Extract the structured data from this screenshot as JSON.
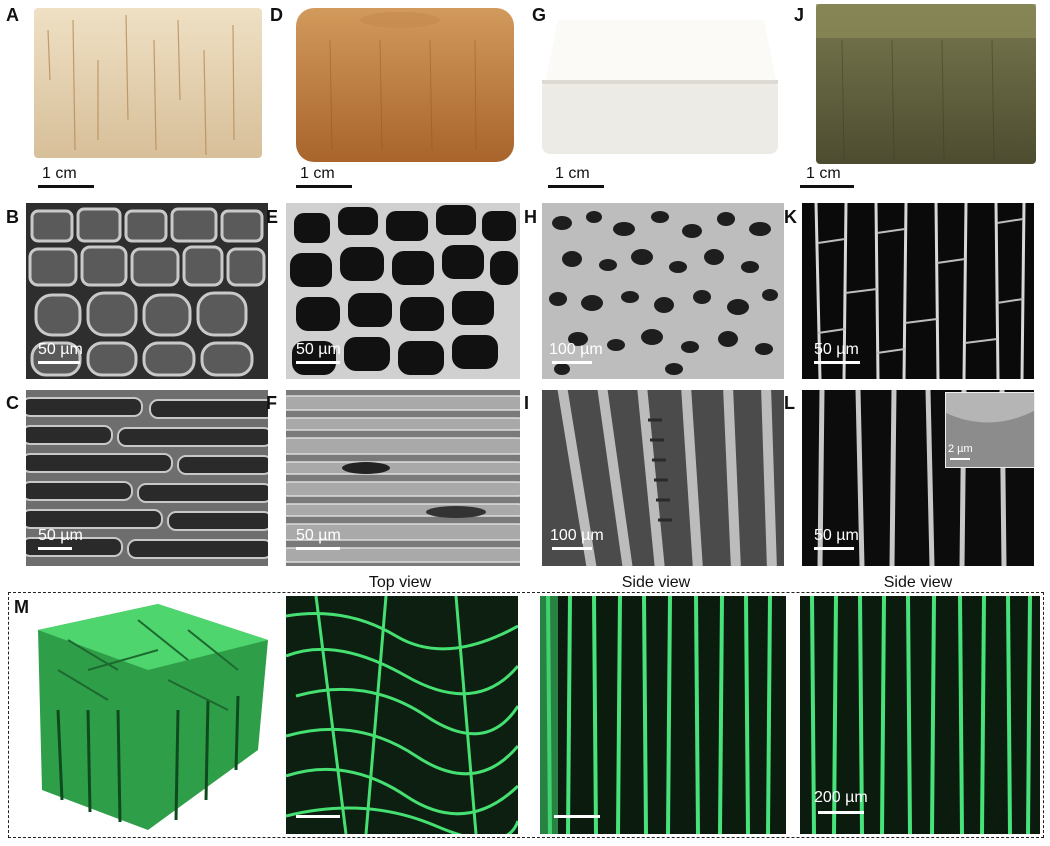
{
  "figure": {
    "panels": {
      "A": "A",
      "B": "B",
      "C": "C",
      "D": "D",
      "E": "E",
      "F": "F",
      "G": "G",
      "H": "H",
      "I": "I",
      "J": "J",
      "K": "K",
      "L": "L",
      "M": "M"
    },
    "scale": {
      "cm": "1 cm",
      "um50": "50 µm",
      "um100": "100 µm",
      "um2": "2 µm",
      "um200": "200 µm"
    },
    "views": {
      "top": "Top view",
      "side1": "Side view",
      "side2": "Side view"
    },
    "colors": {
      "balsa": "#e3cfb0",
      "delignified": "#b8763a",
      "white_block": "#f2f0ea",
      "green_block": "#5b5a3b",
      "microct_green": "#3fd66f"
    }
  }
}
